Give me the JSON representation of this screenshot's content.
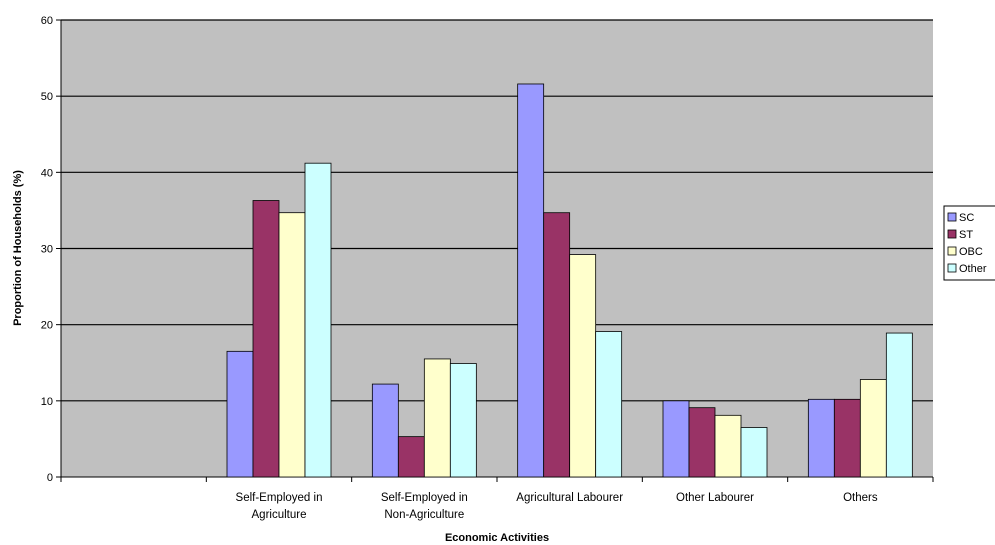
{
  "chart_data": {
    "type": "bar",
    "title": "",
    "xlabel": "Economic Activities",
    "ylabel": "Proportion of Households (%)",
    "ylim": [
      0,
      60
    ],
    "yticks": [
      0,
      10,
      20,
      30,
      40,
      50,
      60
    ],
    "grid": true,
    "legend_position": "right",
    "categories": [
      "",
      "Self-Employed in Agriculture",
      "Self-Employed in Non-Agriculture",
      "Agricultural Labourer",
      "Other Labourer",
      "Others"
    ],
    "category_lines": [
      [],
      [
        "Self-Employed in",
        "Agriculture"
      ],
      [
        "Self-Employed in",
        "Non-Agriculture"
      ],
      [
        "Agricultural Labourer"
      ],
      [
        "Other Labourer"
      ],
      [
        "Others"
      ]
    ],
    "series": [
      {
        "name": "SC",
        "color": "#9999ff",
        "values": [
          null,
          16.5,
          12.2,
          51.6,
          10.0,
          10.2
        ]
      },
      {
        "name": "ST",
        "color": "#993366",
        "values": [
          null,
          36.3,
          5.3,
          34.7,
          9.1,
          10.2
        ]
      },
      {
        "name": "OBC",
        "color": "#ffffcc",
        "values": [
          null,
          34.7,
          15.5,
          29.2,
          8.1,
          12.8
        ]
      },
      {
        "name": "Other",
        "color": "#ccffff",
        "values": [
          null,
          41.2,
          14.9,
          19.1,
          6.5,
          18.9
        ]
      }
    ],
    "colors": {
      "plot_bg": "#c0c0c0",
      "grid": "#000000",
      "bar_edge": "#000000"
    }
  }
}
